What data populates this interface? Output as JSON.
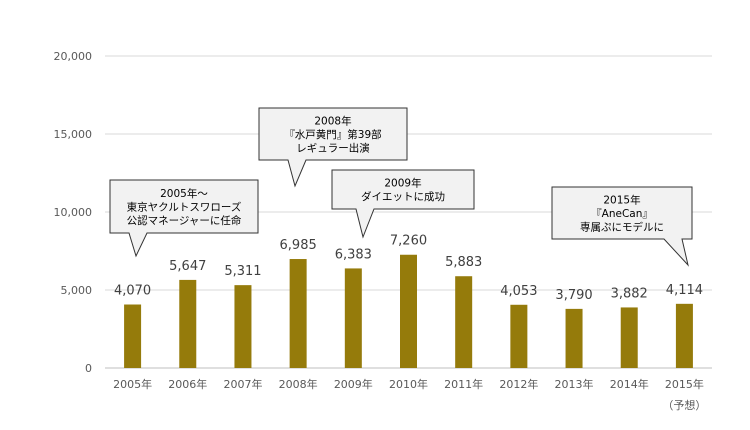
{
  "chart_data": {
    "type": "bar",
    "categories": [
      "2005年",
      "2006年",
      "2007年",
      "2008年",
      "2009年",
      "2010年",
      "2011年",
      "2012年",
      "2013年",
      "2014年",
      "2015年"
    ],
    "category_note": "（予想）",
    "values": [
      4070,
      5647,
      5311,
      6985,
      6383,
      7260,
      5883,
      4053,
      3790,
      3882,
      4114
    ],
    "value_labels": [
      "4,070",
      "5,647",
      "5,311",
      "6,985",
      "6,383",
      "7,260",
      "5,883",
      "4,053",
      "3,790",
      "3,882",
      "4,114"
    ],
    "ylim": [
      0,
      20000
    ],
    "yticks": [
      0,
      5000,
      10000,
      15000,
      20000
    ],
    "ytick_labels": [
      "0",
      "5,000",
      "10,000",
      "15,000",
      "20,000"
    ],
    "grid": true,
    "colors": {
      "bar": "#957B0B",
      "grid": "#d9d9d9",
      "axis": "#bfbfbf"
    },
    "annotations": [
      {
        "category_index": 0,
        "lines": [
          "2005年～",
          "東京ヤクルトスワローズ",
          "公認マネージャーに任命"
        ]
      },
      {
        "category_index": 3,
        "lines": [
          "2008年",
          "『水戸黄門』第39部",
          "レギュラー出演"
        ]
      },
      {
        "category_index": 5,
        "lines": [
          "2009年",
          "ダイエットに成功"
        ]
      },
      {
        "category_index": 10,
        "lines": [
          "2015年",
          "『AneCan』",
          "専属ぷにモデルに"
        ]
      }
    ]
  }
}
